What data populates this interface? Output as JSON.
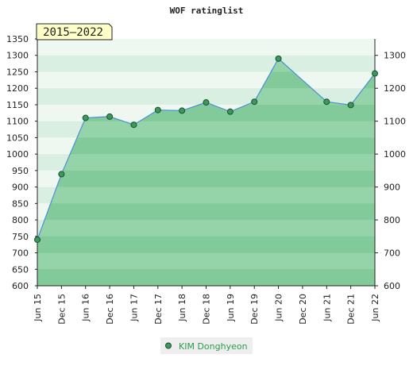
{
  "chart_data": {
    "type": "area",
    "title": "WOF ratinglist",
    "period_label": "2015–2022",
    "xlabel": "",
    "ylabel": "",
    "x": [
      "Jun 15",
      "Dec 15",
      "Jun 16",
      "Dec 16",
      "Jun 17",
      "Dec 17",
      "Jun 18",
      "Dec 18",
      "Jun 19",
      "Dec 19",
      "Jun 20",
      "Dec 20",
      "Jun 21",
      "Dec 21",
      "Jun 22"
    ],
    "ylim": [
      600,
      1350
    ],
    "y_ticks_left": [
      600,
      650,
      700,
      750,
      800,
      850,
      900,
      950,
      1000,
      1050,
      1100,
      1150,
      1200,
      1250,
      1300,
      1350
    ],
    "y_ticks_right": [
      600,
      700,
      800,
      900,
      1000,
      1100,
      1200,
      1300
    ],
    "series": [
      {
        "name": "KIM Donghyeon",
        "points": [
          {
            "x": "Jun 15",
            "y": 740
          },
          {
            "x": "Dec 15",
            "y": 939
          },
          {
            "x": "Jun 16",
            "y": 1110
          },
          {
            "x": "Dec 16",
            "y": 1114
          },
          {
            "x": "Jun 17",
            "y": 1089
          },
          {
            "x": "Dec 17",
            "y": 1134
          },
          {
            "x": "Jun 18",
            "y": 1132
          },
          {
            "x": "Dec 18",
            "y": 1157
          },
          {
            "x": "Jun 19",
            "y": 1129
          },
          {
            "x": "Dec 19",
            "y": 1159
          },
          {
            "x": "Jun 20",
            "y": 1290
          },
          {
            "x": "Jun 21",
            "y": 1159
          },
          {
            "x": "Dec 21",
            "y": 1149
          },
          {
            "x": "Jun 22",
            "y": 1245
          }
        ]
      }
    ],
    "legend_position": "bottom",
    "grid": false,
    "colors": {
      "fill": "#8fd0a4",
      "line": "#4a8fd8",
      "marker": "#3a9a5c",
      "legend_text": "#2e9a4c",
      "period_box": "#ffffc8"
    }
  }
}
